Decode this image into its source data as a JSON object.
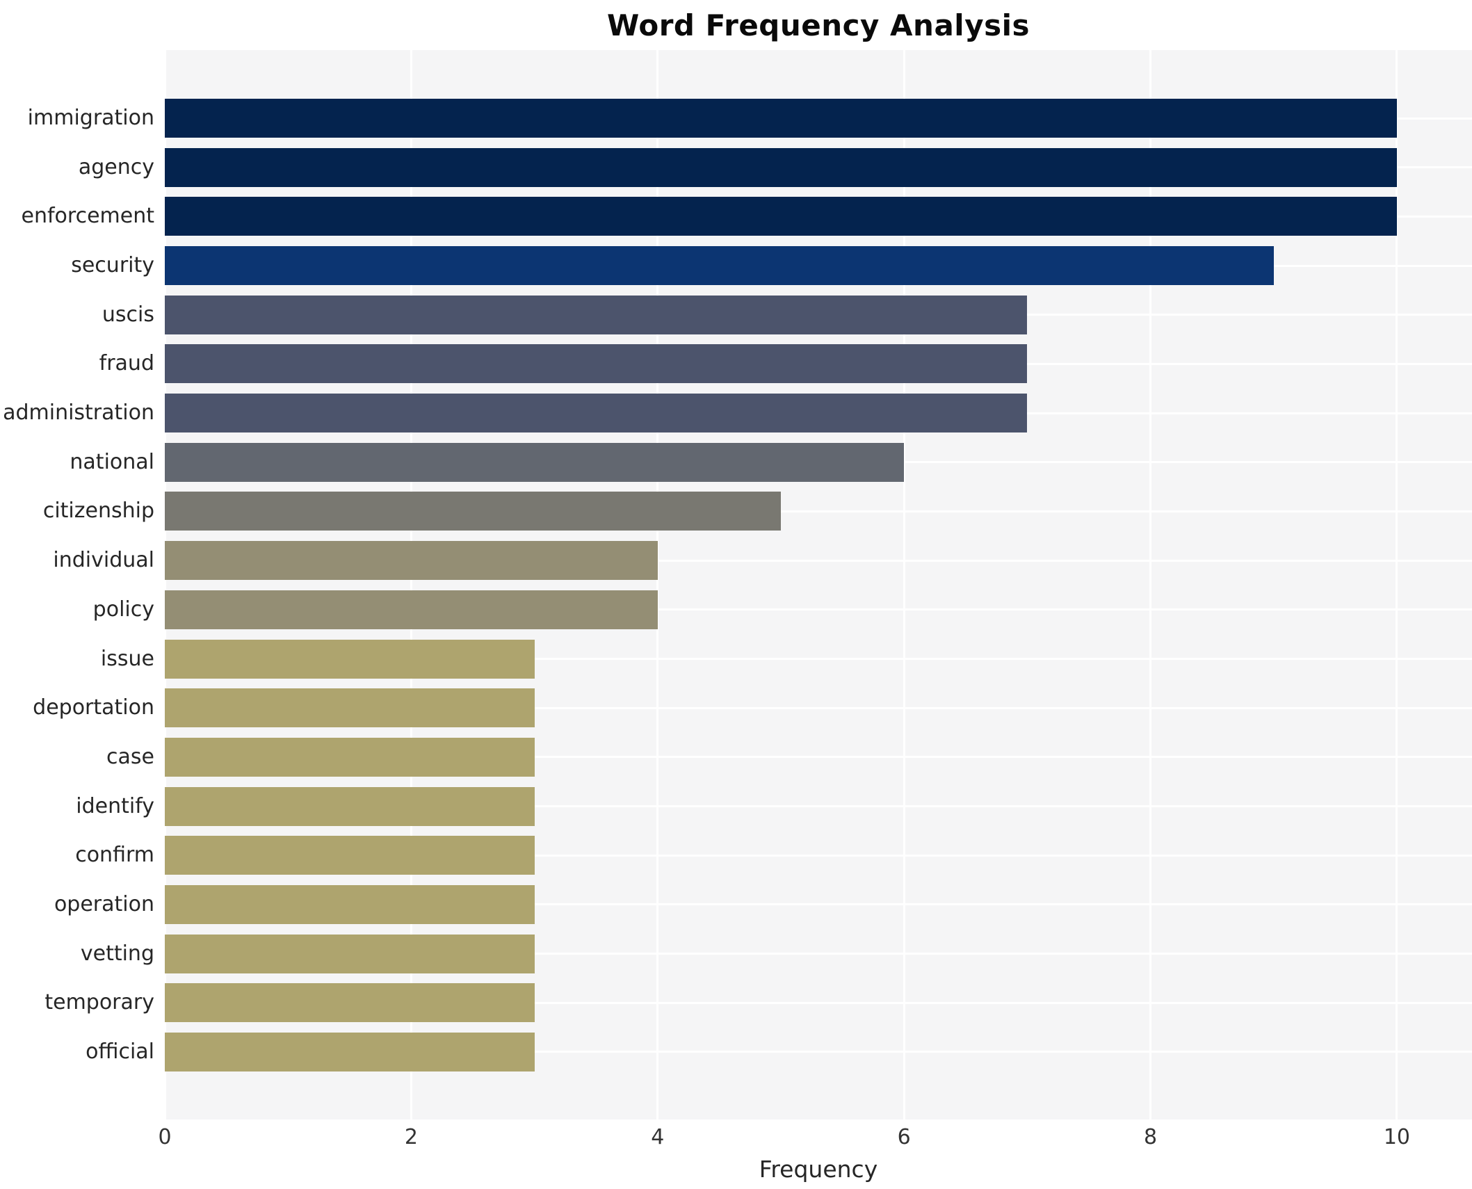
{
  "chart_data": {
    "type": "bar",
    "orientation": "horizontal",
    "title": "Word Frequency Analysis",
    "xlabel": "Frequency",
    "ylabel": "",
    "xlim": [
      0,
      10.61
    ],
    "xticks": [
      0,
      2,
      4,
      6,
      8,
      10
    ],
    "grid": true,
    "legend_position": "none",
    "categories": [
      "immigration",
      "agency",
      "enforcement",
      "security",
      "uscis",
      "fraud",
      "administration",
      "national",
      "citizenship",
      "individual",
      "policy",
      "issue",
      "deportation",
      "case",
      "identify",
      "confirm",
      "operation",
      "vetting",
      "temporary",
      "official"
    ],
    "values": [
      10,
      10,
      10,
      9,
      7,
      7,
      7,
      6,
      5,
      4,
      4,
      3,
      3,
      3,
      3,
      3,
      3,
      3,
      3,
      3
    ],
    "bar_colors": [
      "#04234e",
      "#04234e",
      "#04234e",
      "#0c3572",
      "#4c546c",
      "#4c546c",
      "#4c546c",
      "#626770",
      "#797871",
      "#948e74",
      "#948e74",
      "#aea46e",
      "#aea46e",
      "#aea46e",
      "#aea46e",
      "#aea46e",
      "#aea46e",
      "#aea46e",
      "#aea46e",
      "#aea46e"
    ]
  },
  "colors": {
    "figure_bg": "#ffffff",
    "plot_bg": "#f5f5f6",
    "gridline": "#ffffff",
    "title_text": "#0a0a0a",
    "axis_text": "#262626",
    "tick_text": "#333333"
  }
}
